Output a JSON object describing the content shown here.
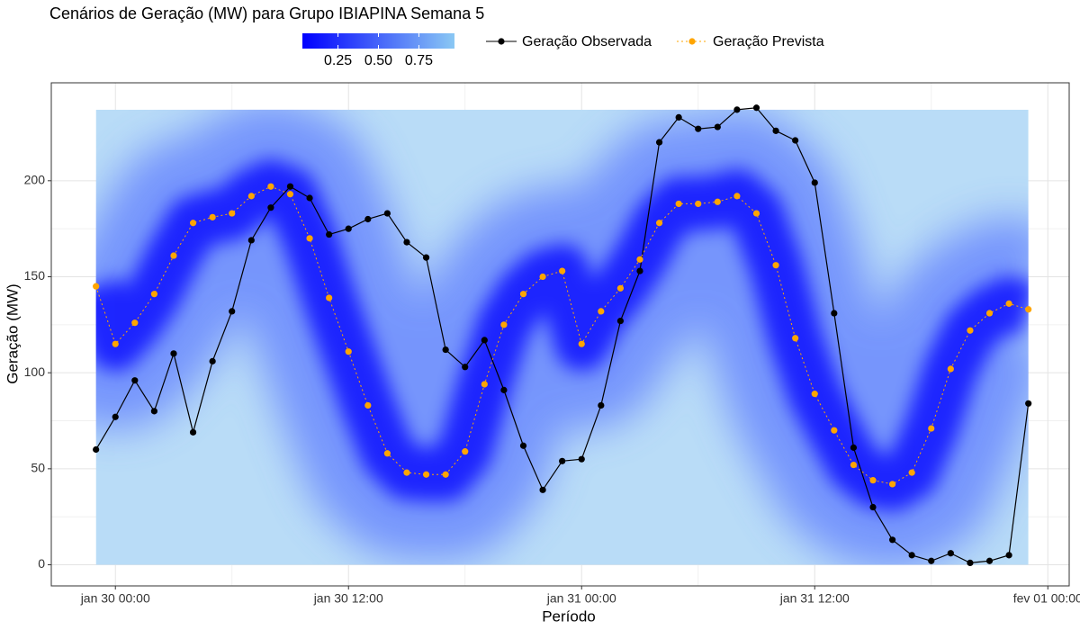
{
  "chart_data": {
    "type": "line",
    "title": "Cenários de Geração (MW) para Grupo IBIAPINA Semana 5",
    "x_label": "Período",
    "y_label": "Geração (MW)",
    "x": [
      -1,
      0,
      1,
      2,
      3,
      4,
      5,
      6,
      7,
      8,
      9,
      10,
      11,
      12,
      13,
      14,
      15,
      16,
      17,
      18,
      19,
      20,
      21,
      22,
      23,
      24,
      25,
      26,
      27,
      28,
      29,
      30,
      31,
      32,
      33,
      34,
      35,
      36,
      37,
      38,
      39,
      40,
      41,
      42,
      43,
      44,
      45,
      46,
      47
    ],
    "series": [
      {
        "name": "Geração Observada",
        "color": "#000000",
        "style": "solid",
        "values": [
          60,
          77,
          96,
          80,
          110,
          69,
          106,
          132,
          169,
          186,
          197,
          191,
          172,
          175,
          180,
          183,
          168,
          160,
          112,
          103,
          117,
          91,
          62,
          39,
          54,
          55,
          83,
          127,
          153,
          220,
          233,
          227,
          228,
          237,
          238,
          226,
          221,
          199,
          131,
          61,
          30,
          13,
          5,
          2,
          6,
          1,
          2,
          5,
          84
        ]
      },
      {
        "name": "Geração Prevista",
        "color": "#ffa500",
        "style": "dotted",
        "values": [
          145,
          115,
          126,
          141,
          161,
          178,
          181,
          183,
          192,
          197,
          193,
          170,
          139,
          111,
          83,
          58,
          48,
          47,
          47,
          59,
          94,
          125,
          141,
          150,
          153,
          115,
          132,
          144,
          159,
          178,
          188,
          188,
          189,
          192,
          183,
          156,
          118,
          89,
          70,
          52,
          44,
          42,
          48,
          71,
          102,
          122,
          131,
          136,
          133
        ]
      }
    ],
    "scenario_range": [
      0,
      237
    ],
    "colorbar": {
      "colors": [
        "#0000ff",
        "#8ac8f4"
      ],
      "lim": [
        0.03,
        0.97
      ],
      "ticks": [
        0.25,
        {
          "value": 0.5,
          "label": "0.50"
        },
        0.75
      ]
    },
    "xlim": [
      -3.3,
      49.1
    ],
    "xticks": [
      {
        "value": 0,
        "label": "jan 30 00:00"
      },
      {
        "value": 12,
        "label": "jan 30 12:00"
      },
      {
        "value": 24,
        "label": "jan 31 00:00"
      },
      {
        "value": 36,
        "label": "jan 31 12:00"
      },
      {
        "value": 48,
        "label": "fev 01 00:00"
      }
    ],
    "ylim": [
      -11,
      251
    ],
    "yticks": [
      0,
      50,
      100,
      150,
      200
    ],
    "grid": true
  }
}
